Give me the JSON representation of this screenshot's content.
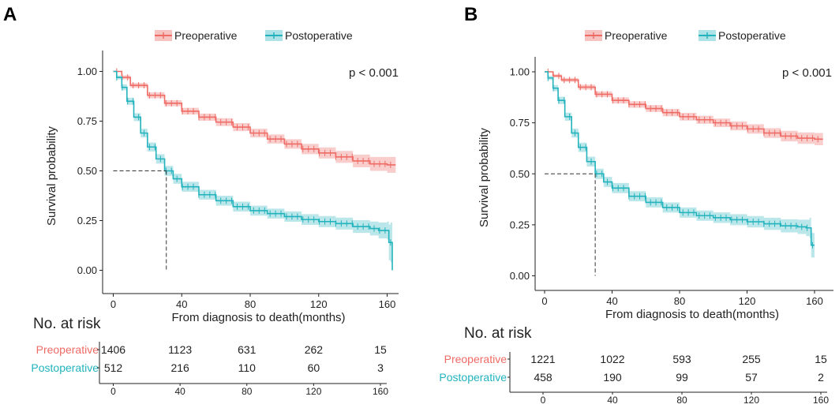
{
  "colors": {
    "preoperative": "#ef6b65",
    "preoperative_band": "#f6bcb9",
    "postoperative": "#22b3bd",
    "postoperative_band": "#a4dfe3"
  },
  "chart_data": [
    {
      "panel_label": "A",
      "type": "line",
      "title": "",
      "xlabel": "From diagnosis to death(months)",
      "ylabel": "Survival probability",
      "xlim": [
        0,
        165
      ],
      "ylim": [
        0,
        1
      ],
      "x_ticks": [
        "0",
        "40",
        "80",
        "120",
        "160"
      ],
      "y_ticks": [
        "0.00",
        "0.25",
        "0.50",
        "0.75",
        "1.00"
      ],
      "pvalue": "p < 0.001",
      "legend_labels": [
        "Preoperative",
        "Postoperative"
      ],
      "median_line": {
        "x": 31,
        "y": 0.5
      },
      "series": [
        {
          "name": "Preoperative",
          "x": [
            0,
            5,
            10,
            20,
            30,
            40,
            50,
            60,
            70,
            80,
            90,
            100,
            110,
            120,
            130,
            140,
            150,
            160,
            165
          ],
          "y": [
            1.0,
            0.97,
            0.93,
            0.88,
            0.84,
            0.8,
            0.77,
            0.745,
            0.72,
            0.69,
            0.66,
            0.635,
            0.61,
            0.59,
            0.57,
            0.55,
            0.535,
            0.53,
            0.53
          ],
          "band_width": [
            0,
            0.01,
            0.012,
            0.015,
            0.015,
            0.017,
            0.018,
            0.02,
            0.02,
            0.022,
            0.023,
            0.024,
            0.026,
            0.028,
            0.03,
            0.032,
            0.035,
            0.04,
            0.04
          ]
        },
        {
          "name": "Postoperative",
          "x": [
            0,
            2,
            5,
            8,
            12,
            16,
            20,
            25,
            30,
            35,
            40,
            50,
            60,
            70,
            80,
            90,
            100,
            110,
            120,
            130,
            140,
            150,
            155,
            160,
            161,
            162,
            163
          ],
          "y": [
            1.0,
            0.97,
            0.92,
            0.85,
            0.77,
            0.69,
            0.62,
            0.56,
            0.5,
            0.46,
            0.42,
            0.38,
            0.35,
            0.32,
            0.3,
            0.285,
            0.27,
            0.255,
            0.245,
            0.235,
            0.22,
            0.21,
            0.2,
            0.2,
            0.14,
            0.14,
            0.0
          ],
          "band_width": [
            0,
            0.01,
            0.015,
            0.018,
            0.02,
            0.022,
            0.023,
            0.024,
            0.025,
            0.025,
            0.025,
            0.025,
            0.025,
            0.025,
            0.025,
            0.025,
            0.026,
            0.027,
            0.028,
            0.03,
            0.032,
            0.035,
            0.04,
            0.045,
            0.09,
            0.1,
            0.14
          ]
        }
      ],
      "risk_table": {
        "title": "No. at risk",
        "groups": [
          {
            "name": "Preoperative",
            "counts": [
              "1406",
              "1123",
              "631",
              "262",
              "15"
            ]
          },
          {
            "name": "Postoperative",
            "counts": [
              "512",
              "216",
              "110",
              "60",
              "3"
            ]
          }
        ],
        "times": [
          "0",
          "40",
          "80",
          "120",
          "160"
        ]
      }
    },
    {
      "panel_label": "B",
      "type": "line",
      "title": "",
      "xlabel": "From diagnosis to death(months)",
      "ylabel": "Survival probability",
      "xlim": [
        0,
        165
      ],
      "ylim": [
        0,
        1
      ],
      "x_ticks": [
        "0",
        "40",
        "80",
        "120",
        "160"
      ],
      "y_ticks": [
        "0.00",
        "0.25",
        "0.50",
        "0.75",
        "1.00"
      ],
      "pvalue": "p < 0.001",
      "legend_labels": [
        "Preoperative",
        "Postoperative"
      ],
      "median_line": {
        "x": 30,
        "y": 0.5
      },
      "series": [
        {
          "name": "Preoperative",
          "x": [
            0,
            5,
            10,
            20,
            30,
            40,
            50,
            60,
            70,
            80,
            90,
            100,
            110,
            120,
            130,
            140,
            150,
            160,
            165
          ],
          "y": [
            1.0,
            0.98,
            0.96,
            0.925,
            0.89,
            0.86,
            0.84,
            0.82,
            0.8,
            0.78,
            0.765,
            0.75,
            0.735,
            0.72,
            0.7,
            0.685,
            0.675,
            0.67,
            0.67
          ],
          "band_width": [
            0,
            0.008,
            0.01,
            0.012,
            0.014,
            0.015,
            0.016,
            0.017,
            0.018,
            0.019,
            0.02,
            0.021,
            0.022,
            0.023,
            0.024,
            0.026,
            0.028,
            0.03,
            0.03
          ]
        },
        {
          "name": "Postoperative",
          "x": [
            0,
            2,
            5,
            8,
            12,
            16,
            20,
            25,
            30,
            35,
            40,
            50,
            60,
            70,
            80,
            90,
            100,
            110,
            120,
            130,
            140,
            150,
            155,
            157,
            158,
            160
          ],
          "y": [
            1.0,
            0.97,
            0.92,
            0.86,
            0.78,
            0.7,
            0.63,
            0.56,
            0.5,
            0.46,
            0.43,
            0.39,
            0.36,
            0.335,
            0.31,
            0.295,
            0.285,
            0.275,
            0.265,
            0.255,
            0.245,
            0.24,
            0.235,
            0.235,
            0.15,
            0.15
          ],
          "band_width": [
            0,
            0.01,
            0.015,
            0.018,
            0.02,
            0.022,
            0.023,
            0.024,
            0.025,
            0.025,
            0.025,
            0.025,
            0.025,
            0.025,
            0.025,
            0.025,
            0.026,
            0.027,
            0.028,
            0.03,
            0.032,
            0.035,
            0.04,
            0.05,
            0.06,
            0.06
          ]
        }
      ],
      "risk_table": {
        "title": "No. at risk",
        "groups": [
          {
            "name": "Preoperative",
            "counts": [
              "1221",
              "1022",
              "593",
              "255",
              "15"
            ]
          },
          {
            "name": "Postoperative",
            "counts": [
              "458",
              "190",
              "99",
              "57",
              "2"
            ]
          }
        ],
        "times": [
          "0",
          "40",
          "80",
          "120",
          "160"
        ]
      }
    }
  ]
}
